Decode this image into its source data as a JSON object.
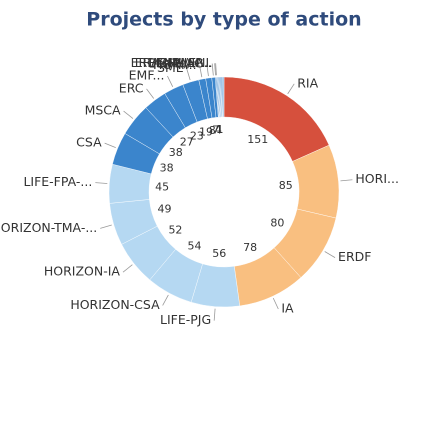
{
  "chart_data": {
    "type": "donut",
    "title": "Projects by type of action",
    "categories": [
      "RIA",
      "HORI...",
      "ERDF",
      "IA",
      "LIFE-PJG",
      "HORIZON-CSA",
      "HORIZON-IA",
      "HORIZON-TMA-...",
      "LIFE-FPA-...",
      "CSA",
      "MSCA",
      "ERC",
      "EMF...",
      "SME",
      "HORI...",
      "EMFF-AG",
      "ENPI/ENI",
      "ERASMUS-...",
      "ERDF;IPA/IP...",
      null,
      null,
      null,
      null,
      null,
      null,
      null,
      null
    ],
    "values": [
      151,
      85,
      80,
      78,
      56,
      54,
      52,
      49,
      45,
      38,
      38,
      27,
      23,
      19,
      8,
      7,
      4,
      1,
      1,
      1,
      1,
      1,
      1,
      1,
      1,
      1,
      1
    ],
    "colors": [
      "#d6503d",
      "#f9bf80",
      "#f9bf80",
      "#f9bf80",
      "#b5d8f2",
      "#b5d8f2",
      "#b5d8f2",
      "#b5d8f2",
      "#b5d8f2",
      "#3b85cc",
      "#3b85cc",
      "#3b85cc",
      "#3b85cc",
      "#3b85cc",
      "#3b85cc",
      "#3b85cc",
      "#3b85cc",
      "#3b85cc",
      "#3b85cc",
      "#3b85cc",
      "#3b85cc",
      "#3b85cc",
      "#3b85cc",
      "#3b85cc",
      "#3b85cc",
      "#3b85cc",
      "#3b85cc"
    ]
  }
}
